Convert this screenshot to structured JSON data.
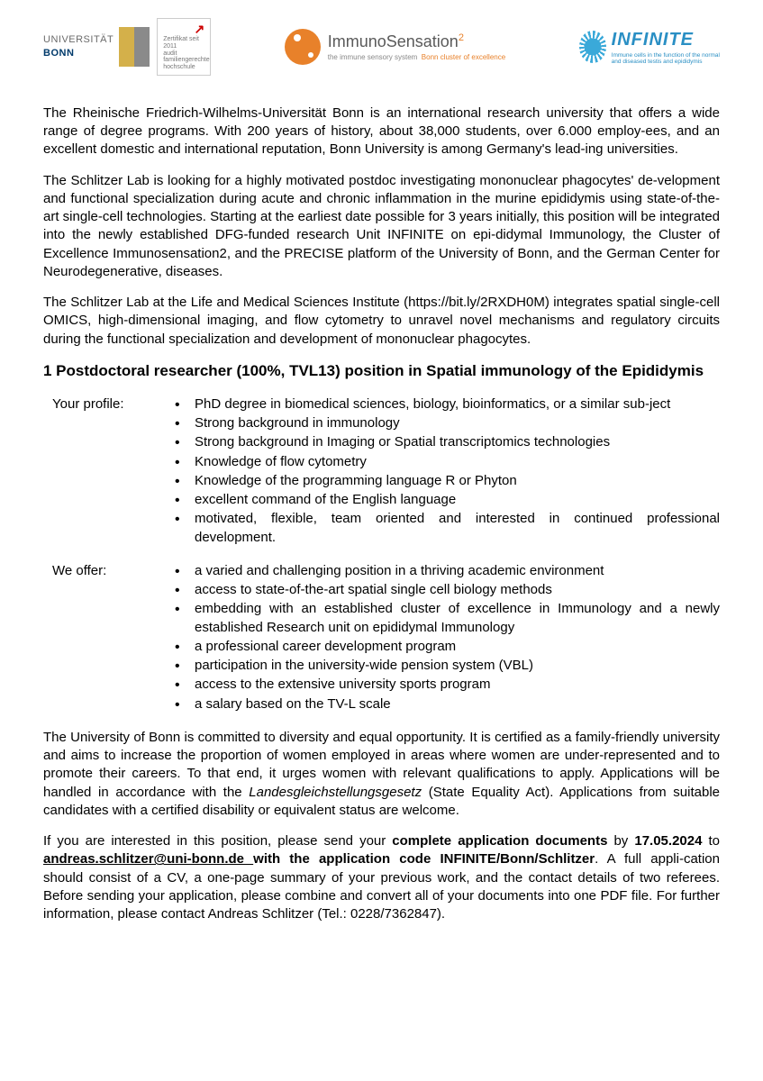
{
  "logos": {
    "uni_bonn": {
      "label": "UNIVERSITÄT",
      "label2": "BONN"
    },
    "zert": {
      "line1": "Zertifikat seit 2011",
      "line2": "audit familiengerechte",
      "line3": "hochschule"
    },
    "immuno": {
      "title": "ImmunoSensation",
      "sup": "2",
      "sub_grey": "the immune sensory system",
      "sub_orange": "Bonn cluster of excellence"
    },
    "infinite": {
      "title": "INFINITE",
      "sub1": "Immune cells in the function of the normal",
      "sub2": "and diseased testis and epididymis"
    }
  },
  "para1": "The Rheinische Friedrich-Wilhelms-Universität Bonn is an international research university that offers a wide range of degree programs. With 200 years of history, about 38,000 students, over 6.000 employ-ees, and an excellent domestic and international reputation, Bonn University is among Germany's lead-ing universities.",
  "para2": "The Schlitzer Lab is looking for a highly motivated postdoc investigating mononuclear phagocytes' de-velopment and functional specialization during acute and chronic inflammation in the murine epididymis using state-of-the-art single-cell technologies. Starting at the earliest date possible for 3 years initially, this position will be integrated into the newly established DFG-funded research Unit INFINITE on epi-didymal Immunology, the Cluster of Excellence Immunosensation2, and the PRECISE platform of the University of Bonn, and the German Center for Neurodegenerative, diseases.",
  "para3": "The Schlitzer Lab at the Life and Medical Sciences Institute (https://bit.ly/2RXDH0M) integrates spatial single-cell OMICS, high-dimensional imaging, and flow cytometry to unravel novel mechanisms and regulatory circuits during the functional specialization and development of mononuclear phagocytes.",
  "heading": "1 Postdoctoral researcher (100%, TVL13) position in Spatial immunology of the Epididymis",
  "profile": {
    "label": "Your profile:",
    "items": [
      "PhD degree in biomedical sciences, biology, bioinformatics, or a similar sub-ject",
      "Strong background in immunology",
      "Strong background in Imaging or Spatial transcriptomics technologies",
      "Knowledge of flow cytometry",
      "Knowledge of the programming language R or Phyton",
      "excellent command of the English language",
      "motivated, flexible, team oriented and interested in continued professional development."
    ]
  },
  "offer": {
    "label": "We offer:",
    "items": [
      "a varied and challenging position in a thriving academic environment",
      "access to state-of-the-art spatial single cell biology methods",
      "embedding with an established cluster of excellence in Immunology and a newly established Research unit on epididymal Immunology",
      "a professional career development program",
      "participation in the university-wide pension system (VBL)",
      "access to the extensive university sports program",
      "a salary based on the TV-L scale"
    ]
  },
  "diversity": {
    "pre": "The University of Bonn is committed to diversity and equal opportunity. It is certified as a family-friendly university and aims to increase the proportion of women employed in areas where women are under-represented and to promote their careers. To that end, it urges women with relevant qualifications to apply. Applications will be handled in accordance with the ",
    "italic": "Landesgleichstellungsgesetz",
    "post": " (State Equality Act). Applications from suitable candidates with a certified disability or equivalent status are welcome."
  },
  "apply": {
    "t1": "If you are interested in this position, please send your ",
    "b1": "complete application documents",
    "t2": " by ",
    "b2": "17.05.2024",
    "t3": " to ",
    "email": "andreas.schlitzer@uni-bonn.de ",
    "b3": "with the application code INFINITE/Bonn/Schlitzer",
    "t4": ". A full appli-cation should consist of a CV, a one-page summary of your previous work, and the contact details of two referees. Before sending your application, please combine and convert all of your documents into one PDF file. For further information, please contact Andreas Schlitzer (Tel.: 0228/7362847)."
  }
}
